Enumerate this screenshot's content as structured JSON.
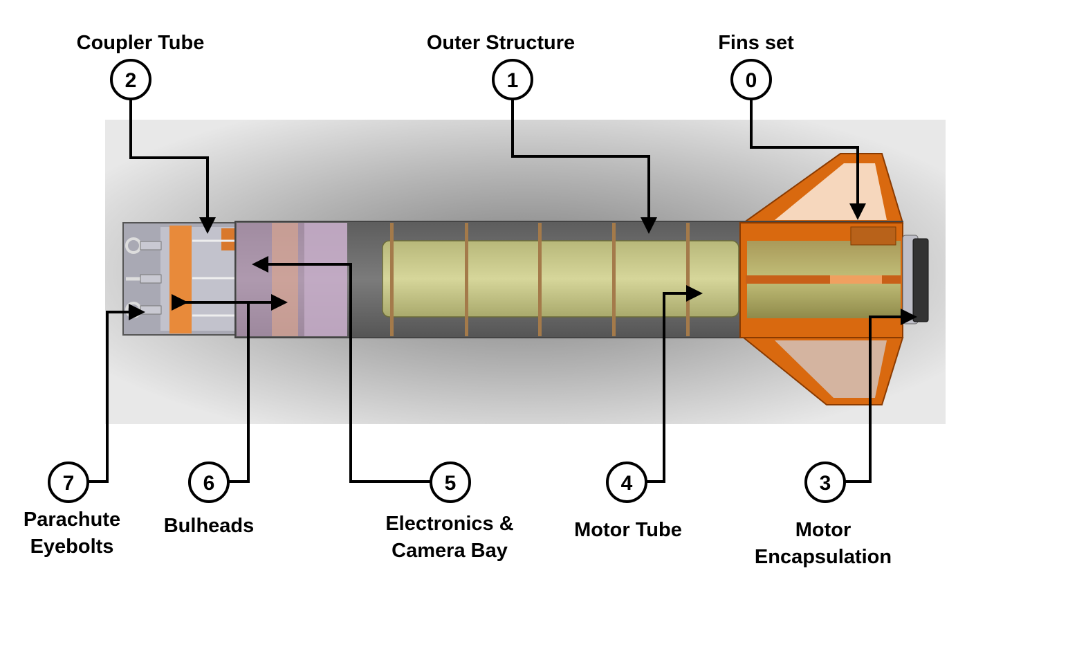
{
  "colors": {
    "background_panel": "#e6e6e6",
    "motor_tube": "#c9c98a",
    "fins": "#d9690f",
    "coupler_band": "#e88a3a",
    "bay_tint": "#d9b3d9"
  },
  "callouts": [
    {
      "id": "fins-set",
      "number": "0",
      "lines": [
        "Fins set"
      ]
    },
    {
      "id": "outer-structure",
      "number": "1",
      "lines": [
        "Outer Structure"
      ]
    },
    {
      "id": "coupler-tube",
      "number": "2",
      "lines": [
        "Coupler Tube"
      ]
    },
    {
      "id": "motor-encapsulation",
      "number": "3",
      "lines": [
        "Motor",
        "Encapsulation"
      ]
    },
    {
      "id": "motor-tube",
      "number": "4",
      "lines": [
        "Motor Tube"
      ]
    },
    {
      "id": "electronics-camera-bay",
      "number": "5",
      "lines": [
        "Electronics &",
        "Camera Bay"
      ]
    },
    {
      "id": "bulheads",
      "number": "6",
      "lines": [
        "Bulheads"
      ]
    },
    {
      "id": "parachute-eyebolts",
      "number": "7",
      "lines": [
        "Parachute",
        "Eyebolts"
      ]
    }
  ]
}
